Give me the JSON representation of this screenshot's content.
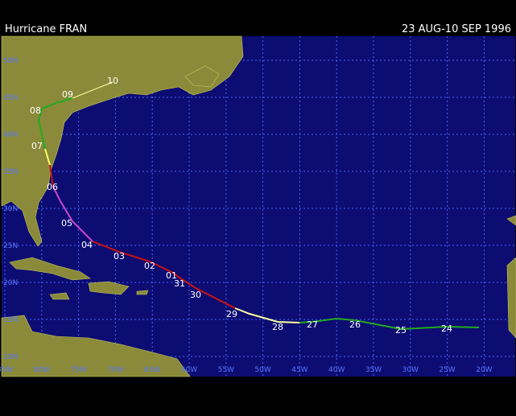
{
  "header": {
    "title": "Hurricane FRAN",
    "dates": "23 AUG-10 SEP 1996"
  },
  "map": {
    "lat_labels": [
      "50N",
      "45N",
      "40N",
      "35N",
      "30N",
      "25N",
      "20N",
      "15N",
      "10N"
    ],
    "lon_labels": [
      "85W",
      "80W",
      "75W",
      "70W",
      "65W",
      "60W",
      "55W",
      "50W",
      "45W",
      "40W",
      "35W",
      "30W",
      "25W",
      "20W"
    ],
    "track_labels": [
      "24",
      "25",
      "26",
      "27",
      "28",
      "29",
      "30",
      "31",
      "01",
      "02",
      "03",
      "04",
      "05",
      "06",
      "07",
      "08",
      "09",
      "10"
    ]
  }
}
